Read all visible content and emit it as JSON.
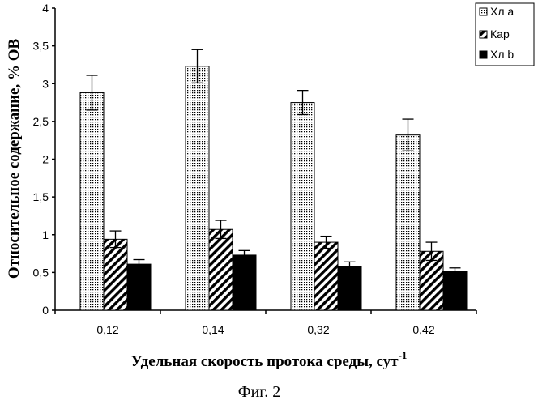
{
  "chart_data": {
    "type": "bar",
    "categories": [
      "0,12",
      "0,14",
      "0,32",
      "0,42"
    ],
    "series": [
      {
        "name": "Хл a",
        "values": [
          2.88,
          3.23,
          2.75,
          2.32
        ],
        "errors": [
          0.23,
          0.22,
          0.16,
          0.21
        ],
        "fill": "dots"
      },
      {
        "name": "Кар",
        "values": [
          0.94,
          1.07,
          0.9,
          0.78
        ],
        "errors": [
          0.11,
          0.12,
          0.08,
          0.12
        ],
        "fill": "hatch"
      },
      {
        "name": "Хл b",
        "values": [
          0.61,
          0.73,
          0.58,
          0.51
        ],
        "errors": [
          0.06,
          0.06,
          0.06,
          0.05
        ],
        "fill": "solid"
      }
    ],
    "yticks": [
      "0",
      "0,5",
      "1",
      "1,5",
      "2",
      "2,5",
      "3",
      "3,5",
      "4"
    ],
    "ylim": [
      0,
      4
    ],
    "ylabel": "Относительное содержание, % ОВ",
    "xlabel": "Удельная скорость протока среды, сут",
    "xlabel_superscript": "-1",
    "caption": "Фиг. 2",
    "legend_position": "top-right",
    "grid": false
  }
}
